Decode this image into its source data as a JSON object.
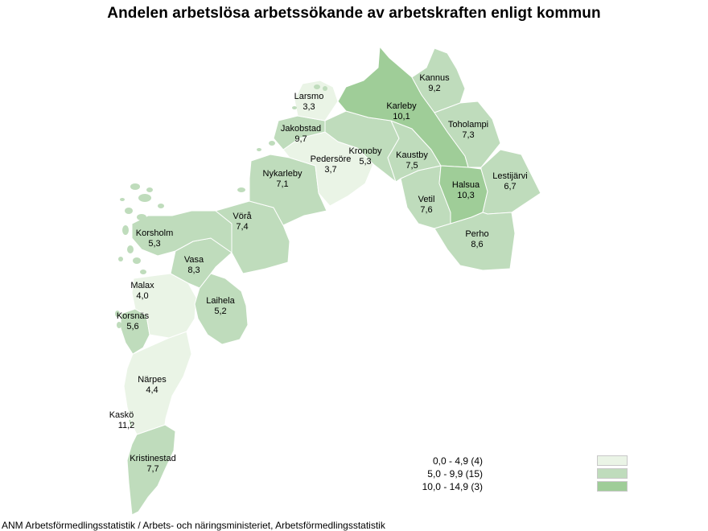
{
  "title": "Andelen arbetslösa arbetssökande av arbetskraften enligt kommun",
  "source": "ANM Arbetsförmedlingsstatistik / Arbets- och näringsministeriet, Arbetsförmedlingsstatistik",
  "legend": [
    {
      "label": "0,0 - 4,9 (4)",
      "color": "#eaf4e6"
    },
    {
      "label": "5,0 - 9,9 (15)",
      "color": "#bfdcbc"
    },
    {
      "label": "10,0 - 14,9 (3)",
      "color": "#9fcd98"
    }
  ],
  "colors": {
    "class1": "#eaf4e6",
    "class2": "#bfdcbc",
    "class3": "#9fcd98"
  },
  "municipalities": [
    {
      "name": "Kannus",
      "value": "9,2",
      "class": 2
    },
    {
      "name": "Larsmo",
      "value": "3,3",
      "class": 1
    },
    {
      "name": "Karleby",
      "value": "10,1",
      "class": 3
    },
    {
      "name": "Toholampi",
      "value": "7,3",
      "class": 2
    },
    {
      "name": "Jakobstad",
      "value": "9,7",
      "class": 2
    },
    {
      "name": "Kronoby",
      "value": "5,3",
      "class": 2
    },
    {
      "name": "Pedersöre",
      "value": "3,7",
      "class": 1
    },
    {
      "name": "Kaustby",
      "value": "7,5",
      "class": 2
    },
    {
      "name": "Lestijärvi",
      "value": "6,7",
      "class": 2
    },
    {
      "name": "Nykarleby",
      "value": "7,1",
      "class": 2
    },
    {
      "name": "Halsua",
      "value": "10,3",
      "class": 3
    },
    {
      "name": "Vetil",
      "value": "7,6",
      "class": 2
    },
    {
      "name": "Vörå",
      "value": "7,4",
      "class": 2
    },
    {
      "name": "Perho",
      "value": "8,6",
      "class": 2
    },
    {
      "name": "Korsholm",
      "value": "5,3",
      "class": 2
    },
    {
      "name": "Vasa",
      "value": "8,3",
      "class": 2
    },
    {
      "name": "Laihela",
      "value": "5,2",
      "class": 2
    },
    {
      "name": "Malax",
      "value": "4,0",
      "class": 1
    },
    {
      "name": "Korsnäs",
      "value": "5,6",
      "class": 2
    },
    {
      "name": "Närpes",
      "value": "4,4",
      "class": 1
    },
    {
      "name": "Kaskö",
      "value": "11,2",
      "class": 3
    },
    {
      "name": "Kristinestad",
      "value": "7,7",
      "class": 2
    }
  ]
}
